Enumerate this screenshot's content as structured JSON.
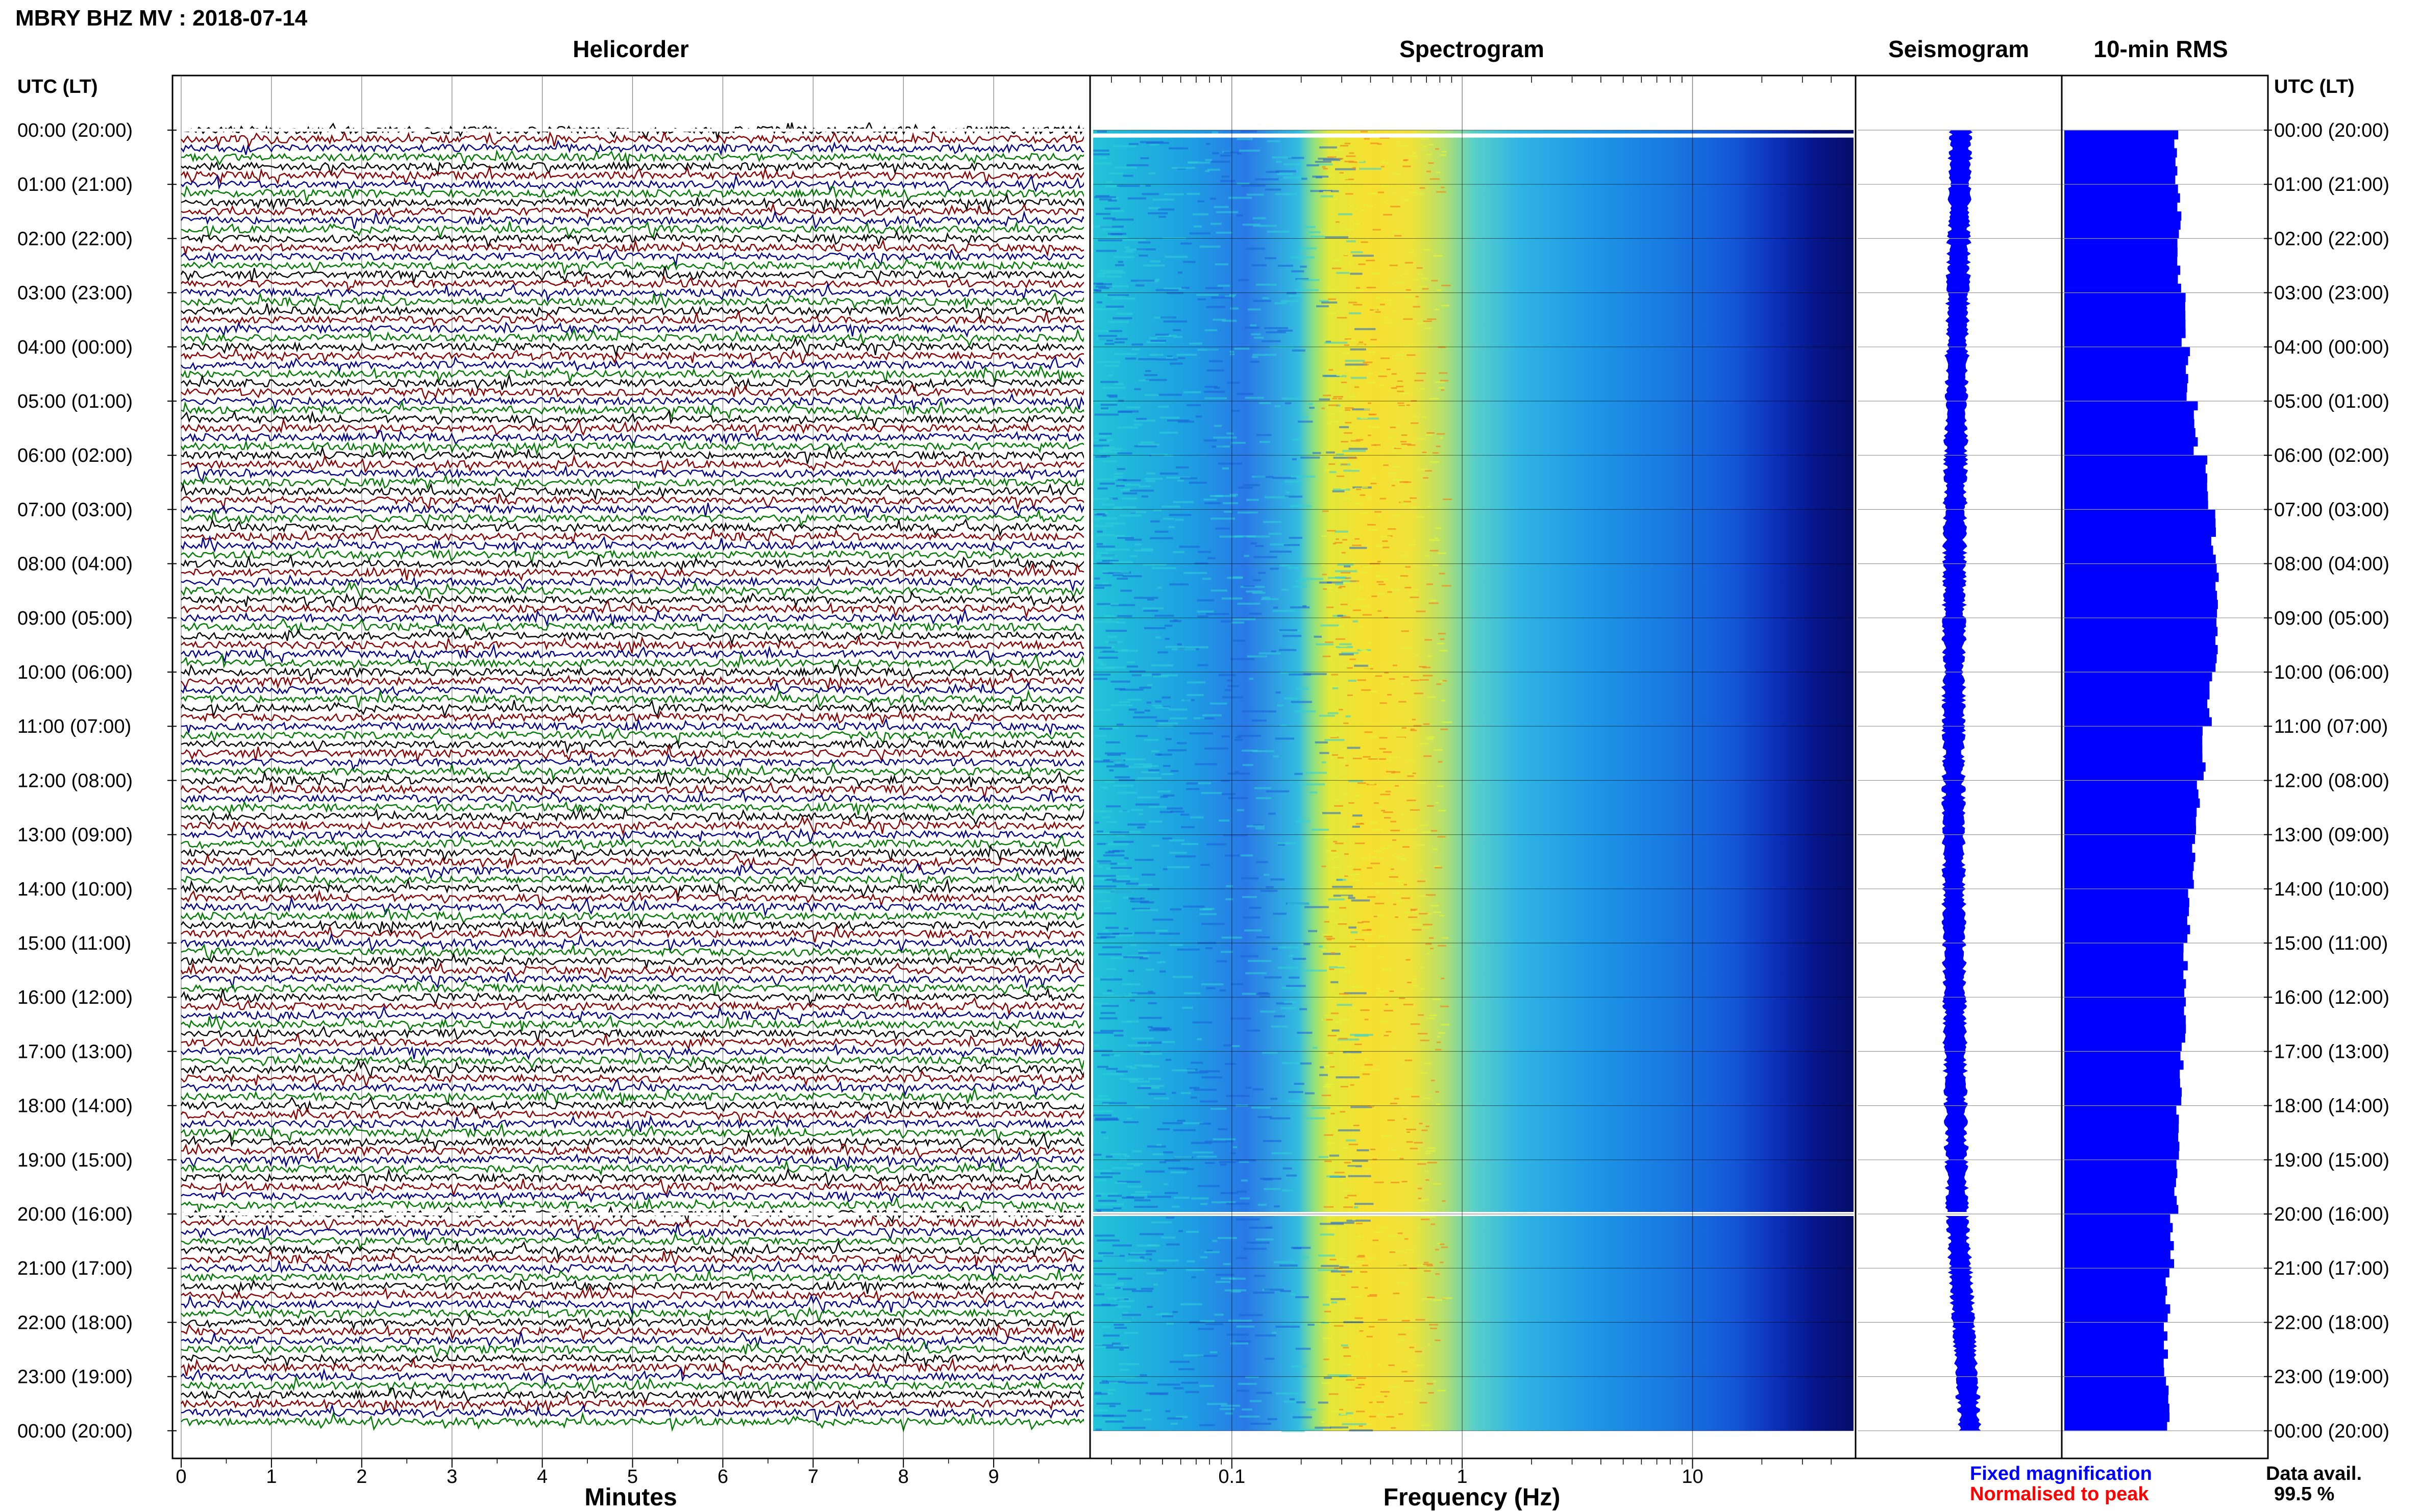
{
  "header": {
    "title": "MBRY BHZ MV : 2018-07-14"
  },
  "panels": {
    "helicorder": "Helicorder",
    "spectrogram": "Spectrogram",
    "seismogram": "Seismogram",
    "rms": "10-min RMS"
  },
  "axis_header": {
    "left": "UTC (LT)",
    "right": "UTC (LT)"
  },
  "time_labels": [
    "00:00 (20:00)",
    "01:00 (21:00)",
    "02:00 (22:00)",
    "03:00 (23:00)",
    "04:00 (00:00)",
    "05:00 (01:00)",
    "06:00 (02:00)",
    "07:00 (03:00)",
    "08:00 (04:00)",
    "09:00 (05:00)",
    "10:00 (06:00)",
    "11:00 (07:00)",
    "12:00 (08:00)",
    "13:00 (09:00)",
    "14:00 (10:00)",
    "15:00 (11:00)",
    "16:00 (12:00)",
    "17:00 (13:00)",
    "18:00 (14:00)",
    "19:00 (15:00)",
    "20:00 (16:00)",
    "21:00 (17:00)",
    "22:00 (18:00)",
    "23:00 (19:00)",
    "00:00 (20:00)"
  ],
  "chart_data": [
    {
      "type": "line",
      "name": "helicorder",
      "title": "Helicorder",
      "xlabel": "Minutes",
      "x_ticks": [
        "0",
        "1",
        "2",
        "3",
        "4",
        "5",
        "6",
        "7",
        "8",
        "9"
      ],
      "xlim": [
        0,
        10
      ],
      "rows_per_hour": 6,
      "trace_colors": [
        "#000000",
        "#8b0000",
        "#00008b",
        "#007a00"
      ],
      "data_gaps_hours": [
        0,
        20
      ]
    },
    {
      "type": "heatmap",
      "name": "spectrogram",
      "title": "Spectrogram",
      "xlabel": "Frequency (Hz)",
      "x_scale": "log",
      "xlim": [
        0.025,
        50
      ],
      "x_ticks": [
        "0.1",
        "1",
        "10"
      ],
      "peak_band_hz": [
        0.2,
        0.5
      ],
      "data_gaps_hours": [
        0.1,
        20
      ]
    },
    {
      "type": "line",
      "name": "seismogram",
      "title": "Seismogram",
      "color": "#0000ff"
    },
    {
      "type": "bar",
      "name": "rms",
      "title": "10-min RMS",
      "color": "#0000ff",
      "hourly_level": [
        0.56,
        0.58,
        0.58,
        0.6,
        0.62,
        0.66,
        0.71,
        0.75,
        0.77,
        0.76,
        0.73,
        0.7,
        0.67,
        0.65,
        0.63,
        0.61,
        0.6,
        0.59,
        0.57,
        0.56,
        0.54,
        0.52,
        0.51,
        0.52
      ]
    }
  ],
  "legend": {
    "fixed": "Fixed magnification",
    "normalised": "Normalised to peak",
    "fixed_color": "#0000ff",
    "normalised_color": "#ff0000"
  },
  "availability": {
    "label": "Data avail.",
    "value": "99.5 %"
  }
}
